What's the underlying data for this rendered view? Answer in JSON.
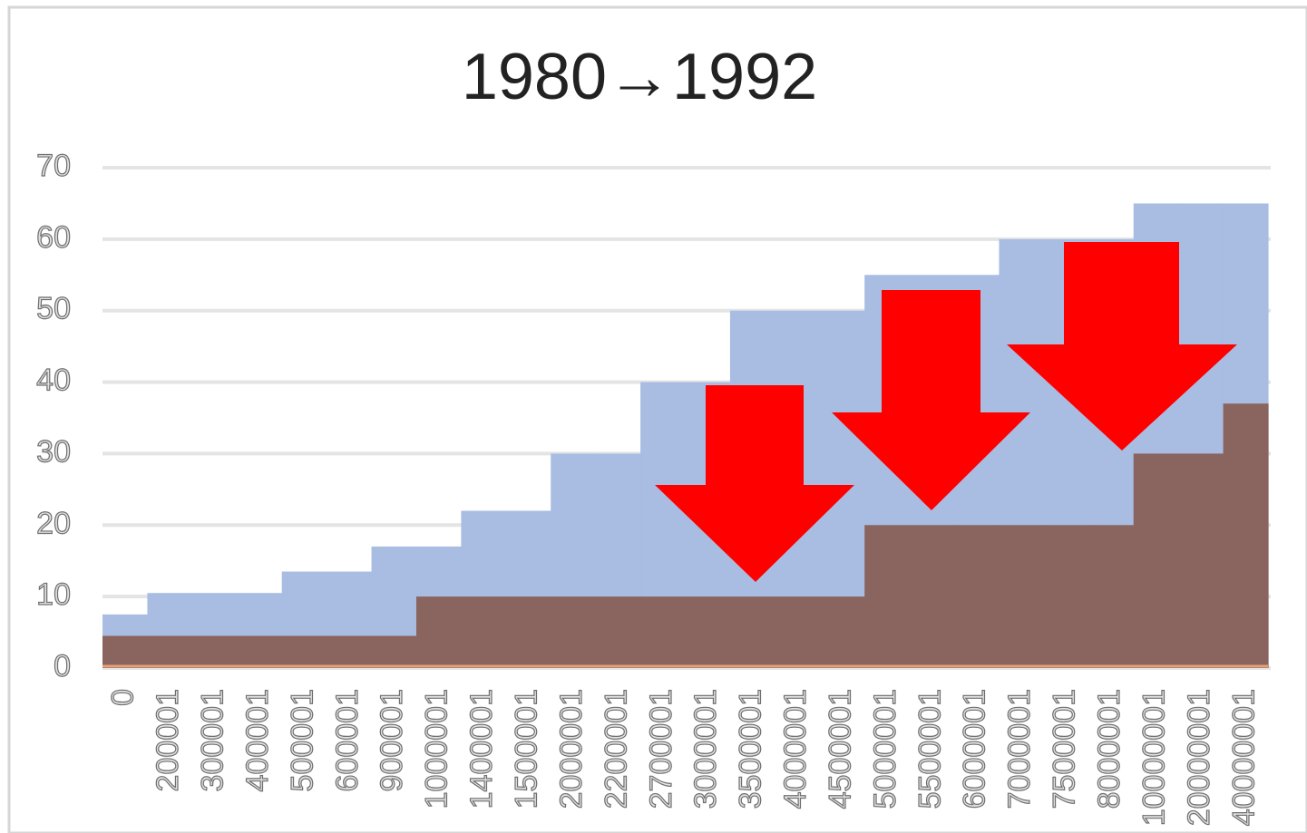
{
  "chart_data": {
    "type": "step",
    "title": "1980→1992",
    "categories": [
      "0",
      "200001",
      "300001",
      "400001",
      "500001",
      "600001",
      "900001",
      "1000001",
      "1400001",
      "1500001",
      "2000001",
      "2200001",
      "2700001",
      "3000001",
      "3500001",
      "4000001",
      "4500001",
      "5000001",
      "5500001",
      "6000001",
      "7000001",
      "7500001",
      "8000001",
      "10000001",
      "20000001",
      "40000001"
    ],
    "series": [
      {
        "color": "#a9bde3",
        "values": [
          7.5,
          10.5,
          10.5,
          10.5,
          13.5,
          13.5,
          17,
          17,
          22,
          22,
          30,
          30,
          40,
          40,
          50,
          50,
          50,
          55,
          55,
          55,
          60,
          60,
          60,
          65,
          65,
          65
        ]
      },
      {
        "color": "#8a645e",
        "values": [
          4.5,
          4.5,
          4.5,
          4.5,
          4.5,
          4.5,
          4.5,
          10,
          10,
          10,
          10,
          10,
          10,
          10,
          10,
          10,
          10,
          20,
          20,
          20,
          20,
          20,
          20,
          30,
          30,
          37
        ]
      }
    ],
    "ylim": [
      0,
      70
    ],
    "yticks": [
      0,
      10,
      20,
      30,
      40,
      50,
      60,
      70
    ],
    "grid": true
  }
}
